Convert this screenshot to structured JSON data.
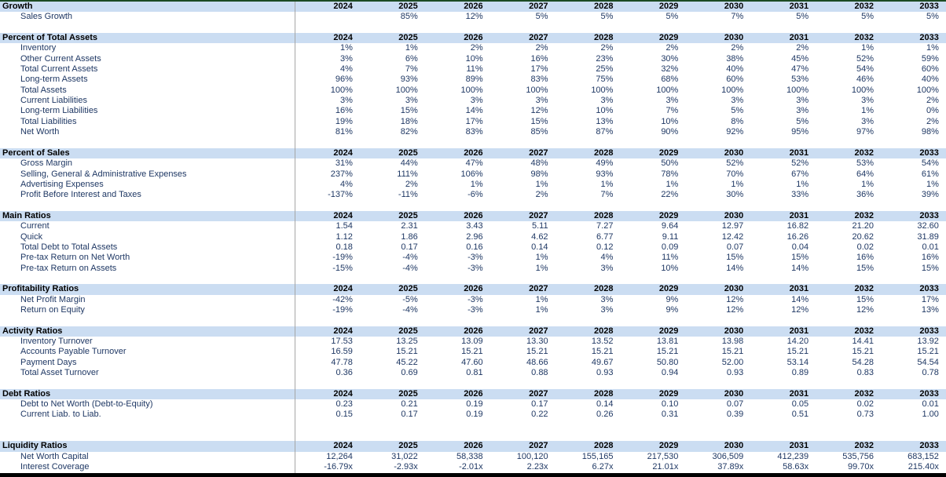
{
  "table": {
    "years": [
      "2024",
      "2025",
      "2026",
      "2027",
      "2028",
      "2029",
      "2030",
      "2031",
      "2032",
      "2033"
    ],
    "sections": [
      {
        "title": "Growth",
        "gap_after": 1,
        "rows": [
          {
            "label": "Sales Growth",
            "values": [
              "",
              "85%",
              "12%",
              "5%",
              "5%",
              "5%",
              "7%",
              "5%",
              "5%",
              "5%"
            ]
          }
        ]
      },
      {
        "title": "Percent of Total Assets",
        "gap_after": 1,
        "rows": [
          {
            "label": "Inventory",
            "values": [
              "1%",
              "1%",
              "2%",
              "2%",
              "2%",
              "2%",
              "2%",
              "2%",
              "1%",
              "1%"
            ]
          },
          {
            "label": "Other Current Assets",
            "values": [
              "3%",
              "6%",
              "10%",
              "16%",
              "23%",
              "30%",
              "38%",
              "45%",
              "52%",
              "59%"
            ]
          },
          {
            "label": "Total Current Assets",
            "values": [
              "4%",
              "7%",
              "11%",
              "17%",
              "25%",
              "32%",
              "40%",
              "47%",
              "54%",
              "60%"
            ]
          },
          {
            "label": "Long-term Assets",
            "values": [
              "96%",
              "93%",
              "89%",
              "83%",
              "75%",
              "68%",
              "60%",
              "53%",
              "46%",
              "40%"
            ]
          },
          {
            "label": "Total Assets",
            "values": [
              "100%",
              "100%",
              "100%",
              "100%",
              "100%",
              "100%",
              "100%",
              "100%",
              "100%",
              "100%"
            ]
          },
          {
            "label": "Current Liabilities",
            "values": [
              "3%",
              "3%",
              "3%",
              "3%",
              "3%",
              "3%",
              "3%",
              "3%",
              "3%",
              "2%"
            ]
          },
          {
            "label": "Long-term Liabilities",
            "values": [
              "16%",
              "15%",
              "14%",
              "12%",
              "10%",
              "7%",
              "5%",
              "3%",
              "1%",
              "0%"
            ]
          },
          {
            "label": "Total Liabilities",
            "values": [
              "19%",
              "18%",
              "17%",
              "15%",
              "13%",
              "10%",
              "8%",
              "5%",
              "3%",
              "2%"
            ]
          },
          {
            "label": "Net Worth",
            "values": [
              "81%",
              "82%",
              "83%",
              "85%",
              "87%",
              "90%",
              "92%",
              "95%",
              "97%",
              "98%"
            ]
          }
        ]
      },
      {
        "title": "Percent of Sales",
        "gap_after": 1,
        "rows": [
          {
            "label": "Gross Margin",
            "values": [
              "31%",
              "44%",
              "47%",
              "48%",
              "49%",
              "50%",
              "52%",
              "52%",
              "53%",
              "54%"
            ]
          },
          {
            "label": "Selling, General & Administrative Expenses",
            "values": [
              "237%",
              "111%",
              "106%",
              "98%",
              "93%",
              "78%",
              "70%",
              "67%",
              "64%",
              "61%"
            ]
          },
          {
            "label": "Advertising Expenses",
            "values": [
              "4%",
              "2%",
              "1%",
              "1%",
              "1%",
              "1%",
              "1%",
              "1%",
              "1%",
              "1%"
            ]
          },
          {
            "label": "Profit Before Interest and Taxes",
            "values": [
              "-137%",
              "-11%",
              "-6%",
              "2%",
              "7%",
              "22%",
              "30%",
              "33%",
              "36%",
              "39%"
            ]
          }
        ]
      },
      {
        "title": "Main Ratios",
        "gap_after": 1,
        "rows": [
          {
            "label": "Current",
            "values": [
              "1.54",
              "2.31",
              "3.43",
              "5.11",
              "7.27",
              "9.64",
              "12.97",
              "16.82",
              "21.20",
              "32.60"
            ]
          },
          {
            "label": "Quick",
            "values": [
              "1.12",
              "1.86",
              "2.96",
              "4.62",
              "6.77",
              "9.11",
              "12.42",
              "16.26",
              "20.62",
              "31.89"
            ]
          },
          {
            "label": "Total Debt to Total Assets",
            "values": [
              "0.18",
              "0.17",
              "0.16",
              "0.14",
              "0.12",
              "0.09",
              "0.07",
              "0.04",
              "0.02",
              "0.01"
            ]
          },
          {
            "label": "Pre-tax Return on Net Worth",
            "values": [
              "-19%",
              "-4%",
              "-3%",
              "1%",
              "4%",
              "11%",
              "15%",
              "15%",
              "16%",
              "16%"
            ]
          },
          {
            "label": "Pre-tax Return on Assets",
            "values": [
              "-15%",
              "-4%",
              "-3%",
              "1%",
              "3%",
              "10%",
              "14%",
              "14%",
              "15%",
              "15%"
            ]
          }
        ]
      },
      {
        "title": "Profitability Ratios",
        "gap_after": 1,
        "rows": [
          {
            "label": "Net Profit Margin",
            "values": [
              "-42%",
              "-5%",
              "-3%",
              "1%",
              "3%",
              "9%",
              "12%",
              "14%",
              "15%",
              "17%"
            ]
          },
          {
            "label": "Return on Equity",
            "values": [
              "-19%",
              "-4%",
              "-3%",
              "1%",
              "3%",
              "9%",
              "12%",
              "12%",
              "12%",
              "13%"
            ]
          }
        ]
      },
      {
        "title": "Activity Ratios",
        "gap_after": 1,
        "rows": [
          {
            "label": "Inventory Turnover",
            "values": [
              "17.53",
              "13.25",
              "13.09",
              "13.30",
              "13.52",
              "13.81",
              "13.98",
              "14.20",
              "14.41",
              "13.92"
            ]
          },
          {
            "label": "Accounts Payable Turnover",
            "values": [
              "16.59",
              "15.21",
              "15.21",
              "15.21",
              "15.21",
              "15.21",
              "15.21",
              "15.21",
              "15.21",
              "15.21"
            ]
          },
          {
            "label": "Payment Days",
            "values": [
              "47.78",
              "45.22",
              "47.60",
              "48.66",
              "49.67",
              "50.80",
              "52.00",
              "53.14",
              "54.28",
              "54.54"
            ]
          },
          {
            "label": "Total Asset Turnover",
            "values": [
              "0.36",
              "0.69",
              "0.81",
              "0.88",
              "0.93",
              "0.94",
              "0.93",
              "0.89",
              "0.83",
              "0.78"
            ]
          }
        ]
      },
      {
        "title": "Debt Ratios",
        "gap_after": 2,
        "rows": [
          {
            "label": "Debt to Net Worth (Debt-to-Equity)",
            "values": [
              "0.23",
              "0.21",
              "0.19",
              "0.17",
              "0.14",
              "0.10",
              "0.07",
              "0.05",
              "0.02",
              "0.01"
            ]
          },
          {
            "label": "Current Liab. to Liab.",
            "values": [
              "0.15",
              "0.17",
              "0.19",
              "0.22",
              "0.26",
              "0.31",
              "0.39",
              "0.51",
              "0.73",
              "1.00"
            ]
          }
        ]
      },
      {
        "title": "Liquidity Ratios",
        "gap_after": 0,
        "rows": [
          {
            "label": "Net Worth Capital",
            "values": [
              "12,264",
              "31,022",
              "58,338",
              "100,120",
              "155,165",
              "217,530",
              "306,509",
              "412,239",
              "535,756",
              "683,152"
            ]
          },
          {
            "label": "Interest Coverage",
            "values": [
              "-16.79x",
              "-2.93x",
              "-2.01x",
              "2.23x",
              "6.27x",
              "21.01x",
              "37.89x",
              "58.63x",
              "99.70x",
              "215.40x"
            ]
          }
        ]
      }
    ]
  },
  "colors": {
    "header_band": "#cbddf2",
    "header_text": "#000000",
    "row_text": "#1f3864",
    "top_border": "#1c4a22",
    "bottom_border": "#000000",
    "divider": "#a6a6a6"
  }
}
